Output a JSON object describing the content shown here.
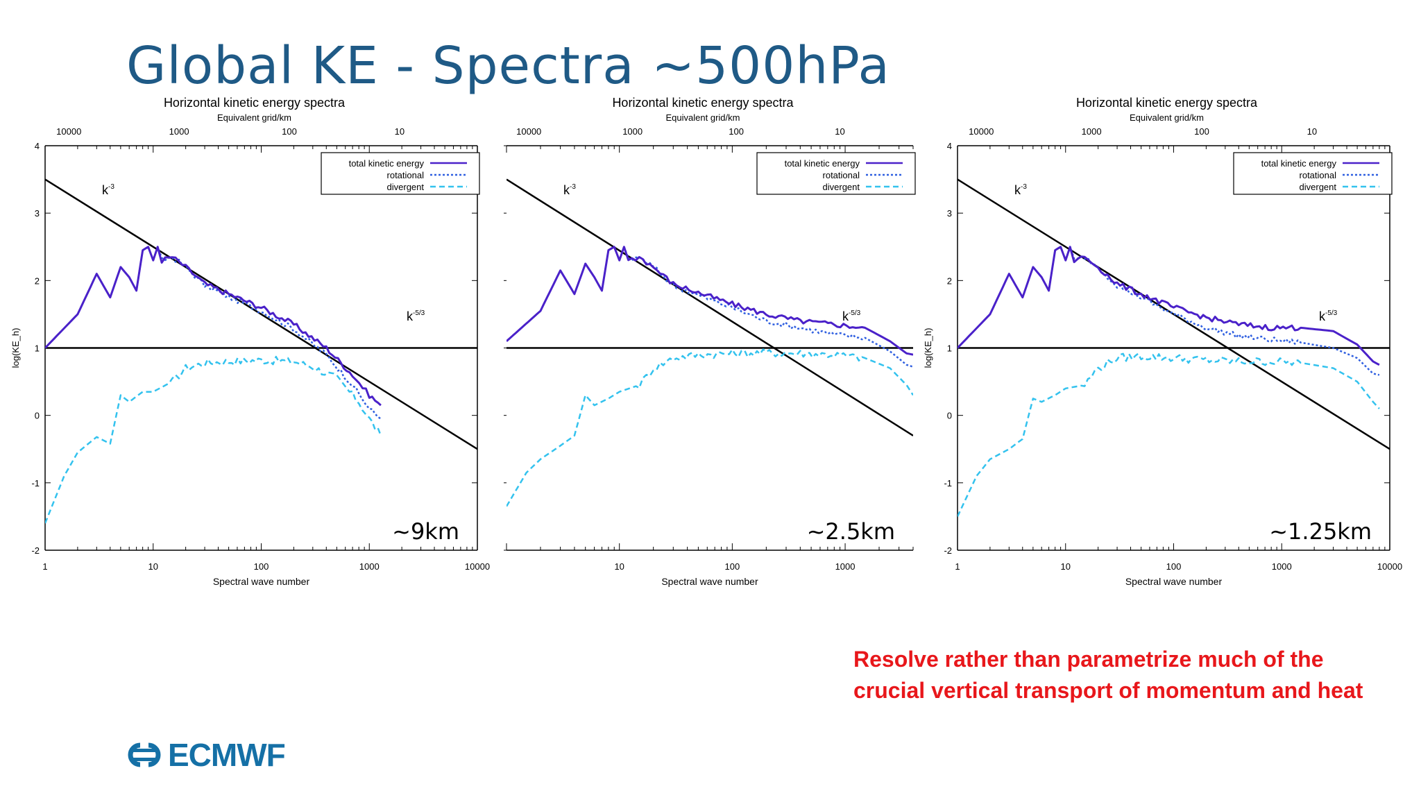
{
  "slide": {
    "title": "Global KE - Spectra ~500hPa",
    "note_lines": [
      "Resolve rather than parametrize much of the",
      "crucial vertical transport of momentum and heat"
    ],
    "logo_text": "ECMWF",
    "colors": {
      "title": "#1f5a86",
      "note": "#e8171b",
      "logo": "#1570a6",
      "total": "#4a21c9",
      "rotational": "#2f5fe0",
      "divergent": "#33c2ee",
      "reference": "#000000"
    }
  },
  "chart_data": [
    {
      "type": "line",
      "title": "Horizontal kinetic energy spectra",
      "top_axis_label": "Equivalent grid/km",
      "top_ticks": [
        "10000",
        "1000",
        "100",
        "10"
      ],
      "xlabel": "Spectral wave number",
      "ylabel": "log(KE_h)",
      "x_scale": "log",
      "xlim": [
        1,
        10000
      ],
      "ylim": [
        -2,
        4
      ],
      "x_ticks": [
        "1",
        "10",
        "100",
        "1000",
        "10000"
      ],
      "y_ticks": [
        "-2",
        "-1",
        "0",
        "1",
        "2",
        "3",
        "4"
      ],
      "resolution_label": "~9km",
      "legend": {
        "placement": "top-right",
        "entries": [
          "total kinetic energy",
          "rotational",
          "divergent"
        ]
      },
      "ref_lines": [
        {
          "label": "k-3",
          "x": [
            1,
            10000
          ],
          "y": [
            3.5,
            -0.5
          ]
        },
        {
          "label": "k-5/3",
          "x": [
            1,
            10000
          ],
          "y": [
            1.0,
            1.0
          ]
        }
      ],
      "series": [
        {
          "name": "total kinetic energy",
          "x": [
            1,
            2,
            3,
            4,
            5,
            6,
            7,
            8,
            9,
            10,
            11,
            12,
            15,
            20,
            30,
            50,
            100,
            200,
            400,
            700,
            1000,
            1279
          ],
          "y": [
            1.0,
            1.5,
            2.1,
            1.75,
            2.2,
            2.05,
            1.85,
            2.45,
            2.5,
            2.3,
            2.5,
            2.3,
            2.35,
            2.2,
            1.95,
            1.8,
            1.6,
            1.35,
            1.0,
            0.6,
            0.3,
            0.15
          ]
        },
        {
          "name": "rotational",
          "x": [
            1,
            2,
            3,
            4,
            5,
            6,
            7,
            8,
            9,
            10,
            11,
            12,
            15,
            20,
            30,
            50,
            100,
            200,
            400,
            700,
            1000,
            1279
          ],
          "y": [
            1.0,
            1.5,
            2.1,
            1.75,
            2.2,
            2.05,
            1.85,
            2.45,
            2.5,
            2.3,
            2.5,
            2.3,
            2.35,
            2.2,
            1.93,
            1.76,
            1.55,
            1.28,
            0.9,
            0.45,
            0.1,
            -0.05
          ]
        },
        {
          "name": "divergent",
          "x": [
            1,
            1.5,
            2,
            3,
            4,
            5,
            6,
            8,
            10,
            15,
            20,
            30,
            50,
            100,
            200,
            300,
            500,
            800,
            1000,
            1279
          ],
          "y": [
            -1.6,
            -0.9,
            -0.55,
            -0.32,
            -0.42,
            0.3,
            0.2,
            0.35,
            0.35,
            0.5,
            0.7,
            0.78,
            0.8,
            0.82,
            0.8,
            0.72,
            0.55,
            0.2,
            -0.05,
            -0.3
          ]
        }
      ]
    },
    {
      "type": "line",
      "title": "Horizontal kinetic energy spectra",
      "top_axis_label": "Equivalent grid/km",
      "top_ticks": [
        "10000",
        "1000",
        "100",
        "10"
      ],
      "xlabel": "Spectral wave number",
      "ylabel": "",
      "x_scale": "log",
      "xlim": [
        1,
        4000
      ],
      "ylim": [
        -2,
        4
      ],
      "x_ticks": [
        "10",
        "100",
        "1000"
      ],
      "y_ticks": [],
      "resolution_label": "~2.5km",
      "legend": {
        "placement": "top-right",
        "entries": [
          "total kinetic energy",
          "rotational",
          "divergent"
        ]
      },
      "ref_lines": [
        {
          "label": "k-3",
          "x": [
            1,
            4000
          ],
          "y": [
            3.5,
            -0.3
          ]
        },
        {
          "label": "k-5/3",
          "x": [
            1,
            4000
          ],
          "y": [
            1.0,
            1.0
          ]
        }
      ],
      "series": [
        {
          "name": "total kinetic energy",
          "x": [
            1,
            2,
            3,
            4,
            5,
            6,
            7,
            8,
            9,
            10,
            11,
            12,
            15,
            20,
            30,
            50,
            100,
            200,
            400,
            800,
            1500,
            2500,
            3500,
            3999
          ],
          "y": [
            1.1,
            1.55,
            2.15,
            1.8,
            2.25,
            2.05,
            1.85,
            2.45,
            2.5,
            2.3,
            2.5,
            2.3,
            2.35,
            2.2,
            1.95,
            1.82,
            1.65,
            1.5,
            1.4,
            1.35,
            1.3,
            1.1,
            0.92,
            0.9
          ]
        },
        {
          "name": "rotational",
          "x": [
            1,
            2,
            3,
            4,
            5,
            6,
            7,
            8,
            9,
            10,
            11,
            12,
            15,
            20,
            30,
            50,
            100,
            200,
            400,
            800,
            1500,
            2500,
            3500,
            3999
          ],
          "y": [
            1.1,
            1.55,
            2.15,
            1.8,
            2.25,
            2.05,
            1.85,
            2.45,
            2.5,
            2.3,
            2.5,
            2.3,
            2.35,
            2.2,
            1.93,
            1.78,
            1.6,
            1.4,
            1.3,
            1.2,
            1.15,
            0.95,
            0.75,
            0.72
          ]
        },
        {
          "name": "divergent",
          "x": [
            1,
            1.5,
            2,
            3,
            4,
            5,
            6,
            8,
            10,
            15,
            20,
            30,
            50,
            100,
            200,
            400,
            800,
            1500,
            2500,
            3500,
            3999
          ],
          "y": [
            -1.35,
            -0.85,
            -0.65,
            -0.45,
            -0.3,
            0.3,
            0.15,
            0.25,
            0.35,
            0.45,
            0.7,
            0.85,
            0.9,
            0.92,
            0.93,
            0.92,
            0.9,
            0.85,
            0.7,
            0.45,
            0.3
          ]
        }
      ]
    },
    {
      "type": "line",
      "title": "Horizontal kinetic energy spectra",
      "top_axis_label": "Equivalent grid/km",
      "top_ticks": [
        "10000",
        "1000",
        "100",
        "10"
      ],
      "xlabel": "Spectral wave number",
      "ylabel": "log(KE_h)",
      "x_scale": "log",
      "xlim": [
        1,
        10000
      ],
      "ylim": [
        -2,
        4
      ],
      "x_ticks": [
        "1",
        "10",
        "100",
        "1000",
        "10000"
      ],
      "y_ticks": [
        "-2",
        "-1",
        "0",
        "1",
        "2",
        "3",
        "4"
      ],
      "resolution_label": "~1.25km",
      "legend": {
        "placement": "top-right",
        "entries": [
          "total kinetic energy",
          "rotational",
          "divergent"
        ]
      },
      "ref_lines": [
        {
          "label": "k-3",
          "x": [
            1,
            10000
          ],
          "y": [
            3.5,
            -0.5
          ]
        },
        {
          "label": "k-5/3",
          "x": [
            1,
            10000
          ],
          "y": [
            1.0,
            1.0
          ]
        }
      ],
      "series": [
        {
          "name": "total kinetic energy",
          "x": [
            1,
            2,
            3,
            4,
            5,
            6,
            7,
            8,
            9,
            10,
            11,
            12,
            15,
            20,
            30,
            50,
            100,
            200,
            400,
            800,
            1500,
            3000,
            5000,
            7000,
            7999
          ],
          "y": [
            1.0,
            1.5,
            2.1,
            1.75,
            2.2,
            2.05,
            1.85,
            2.45,
            2.5,
            2.3,
            2.5,
            2.3,
            2.35,
            2.2,
            1.95,
            1.8,
            1.6,
            1.45,
            1.35,
            1.3,
            1.3,
            1.25,
            1.05,
            0.8,
            0.75
          ]
        },
        {
          "name": "rotational",
          "x": [
            1,
            2,
            3,
            4,
            5,
            6,
            7,
            8,
            9,
            10,
            11,
            12,
            15,
            20,
            30,
            50,
            100,
            200,
            400,
            800,
            1500,
            3000,
            5000,
            7000,
            7999
          ],
          "y": [
            1.0,
            1.5,
            2.1,
            1.75,
            2.2,
            2.05,
            1.85,
            2.45,
            2.5,
            2.3,
            2.5,
            2.3,
            2.35,
            2.2,
            1.93,
            1.75,
            1.5,
            1.3,
            1.18,
            1.12,
            1.08,
            1.0,
            0.85,
            0.62,
            0.6
          ]
        },
        {
          "name": "divergent",
          "x": [
            1,
            1.5,
            2,
            3,
            4,
            5,
            6,
            8,
            10,
            15,
            20,
            30,
            50,
            100,
            200,
            400,
            800,
            1500,
            3000,
            5000,
            7000,
            7999
          ],
          "y": [
            -1.5,
            -0.9,
            -0.65,
            -0.5,
            -0.35,
            0.25,
            0.2,
            0.3,
            0.4,
            0.45,
            0.7,
            0.85,
            0.88,
            0.85,
            0.82,
            0.8,
            0.8,
            0.78,
            0.7,
            0.5,
            0.2,
            0.1
          ]
        }
      ]
    }
  ]
}
